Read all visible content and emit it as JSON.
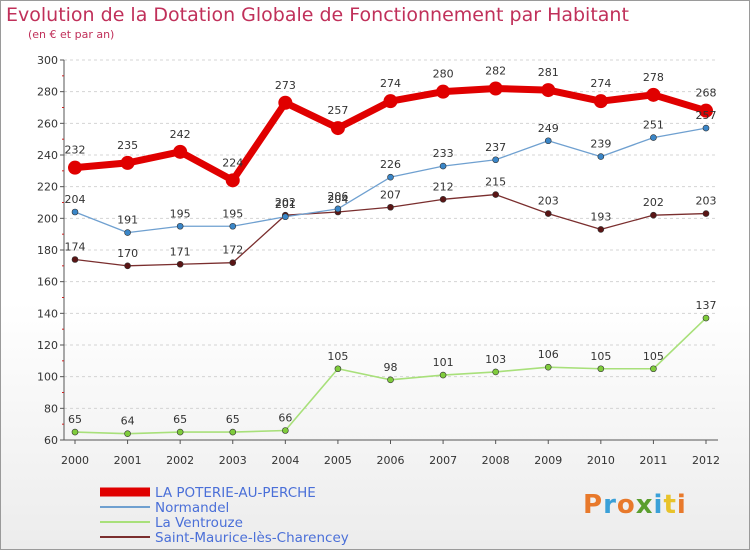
{
  "page": {
    "title": "Evolution de la Dotation Globale de Fonctionnement par Habitant",
    "subtitle": "(en € et par an)"
  },
  "brand": {
    "logo_text": "Proxiti",
    "logo_letter_colors": [
      "#e8792b",
      "#3aa0d8",
      "#e8792b",
      "#5b9e2e",
      "#3aa0d8",
      "#e8c32b",
      "#e8792b"
    ]
  },
  "chart_data": {
    "type": "line",
    "title": "Evolution de la Dotation Globale de Fonctionnement par Habitant",
    "subtitle": "(en € et par an)",
    "xlabel": "",
    "ylabel": "",
    "x": [
      2000,
      2001,
      2002,
      2003,
      2004,
      2005,
      2006,
      2007,
      2008,
      2009,
      2010,
      2011,
      2012
    ],
    "ylim": [
      60,
      300
    ],
    "yticks": [
      60,
      80,
      100,
      120,
      140,
      160,
      180,
      200,
      220,
      240,
      260,
      280,
      300
    ],
    "grid": true,
    "legend_position": "bottom-left",
    "series": [
      {
        "name": "LA POTERIE-AU-PERCHE",
        "values": [
          232,
          235,
          242,
          224,
          273,
          257,
          274,
          280,
          282,
          281,
          274,
          278,
          268
        ],
        "labels": [
          "232",
          "235",
          "242",
          "224",
          "273",
          "257",
          "274",
          "280",
          "282",
          "281",
          "274",
          "278",
          "268"
        ],
        "color": "#e00000",
        "marker_color": "#e00000",
        "width": 7,
        "marker_radius": 7
      },
      {
        "name": "Normandel",
        "values": [
          204,
          191,
          195,
          195,
          201,
          206,
          226,
          233,
          237,
          249,
          239,
          251,
          257
        ],
        "labels": [
          "204",
          "191",
          "195",
          "195",
          "201",
          "206",
          "226",
          "233",
          "237",
          "249",
          "239",
          "251",
          "257"
        ],
        "color": "#6fa0d0",
        "marker_color": "#3a86c8",
        "width": 1.3,
        "marker_radius": 3
      },
      {
        "name": "La Ventrouze",
        "values": [
          65,
          64,
          65,
          65,
          66,
          105,
          98,
          101,
          103,
          106,
          105,
          105,
          137
        ],
        "labels": [
          "65",
          "64",
          "65",
          "65",
          "66",
          "105",
          "98",
          "101",
          "103",
          "106",
          "105",
          "105",
          "137"
        ],
        "color": "#a8e07a",
        "marker_color": "#7fcc3c",
        "width": 1.6,
        "marker_radius": 3
      },
      {
        "name": "Saint-Maurice-lès-Charencey",
        "values": [
          174,
          170,
          171,
          172,
          202,
          204,
          207,
          212,
          215,
          203,
          193,
          202,
          203
        ],
        "labels": [
          "174",
          "170",
          "171",
          "172",
          "202",
          "204",
          "207",
          "212",
          "215",
          "203",
          "193",
          "202",
          "203"
        ],
        "color": "#7a2e2e",
        "marker_color": "#5a1515",
        "width": 1.3,
        "marker_radius": 3
      }
    ]
  }
}
